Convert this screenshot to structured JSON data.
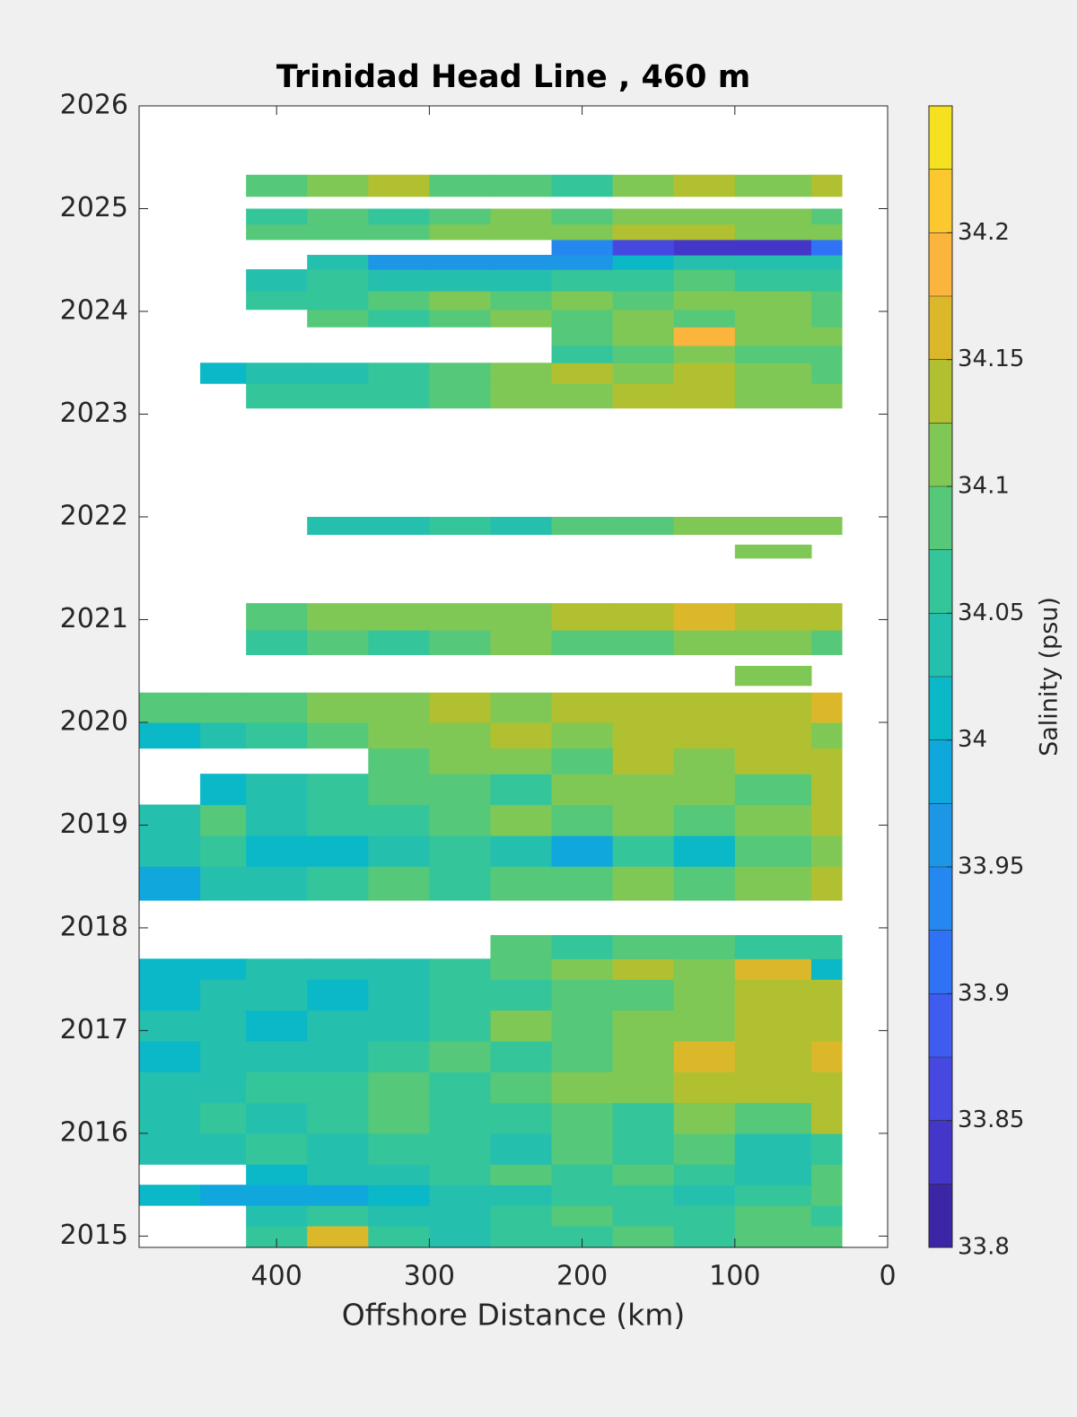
{
  "chart_data": {
    "type": "contour",
    "title": "Trinidad Head Line , 460 m",
    "xlabel": "Offshore Distance (km)",
    "colorbar_label": "Salinity (psu)",
    "xlim": [
      490,
      0
    ],
    "xticks": [
      400,
      300,
      200,
      100,
      0
    ],
    "ylim": [
      2014.89,
      2026
    ],
    "yticks": [
      2015,
      2016,
      2017,
      2018,
      2019,
      2020,
      2021,
      2022,
      2023,
      2024,
      2025,
      2026
    ],
    "clim": [
      33.8,
      34.25
    ],
    "cticks": [
      33.8,
      33.85,
      33.9,
      33.95,
      34,
      34.05,
      34.1,
      34.15,
      34.2
    ],
    "colormap": [
      "#3d26a6",
      "#4436c8",
      "#4748e0",
      "#3f5cf0",
      "#3072f5",
      "#2588f0",
      "#1e96e6",
      "#10a8dc",
      "#0ab8c8",
      "#25bfad",
      "#35c59a",
      "#55c87a",
      "#80c855",
      "#b0c030",
      "#dbb82a",
      "#fbb43c",
      "#fcc830",
      "#f6e120"
    ],
    "xbins": [
      490,
      450,
      420,
      380,
      340,
      300,
      260,
      220,
      180,
      140,
      100,
      50,
      30
    ],
    "ybins": [
      2014.89,
      2015.1,
      2015.3,
      2015.5,
      2015.7,
      2016.0,
      2016.3,
      2016.6,
      2016.9,
      2017.2,
      2017.5,
      2017.7,
      2017.93,
      2018.27,
      2018.6,
      2018.9,
      2019.2,
      2019.5,
      2019.75,
      2020.0,
      2020.29,
      2020.36,
      2020.55,
      2020.66,
      2020.9,
      2021.16,
      2021.6,
      2021.73,
      2021.83,
      2022.0,
      2023.06,
      2023.3,
      2023.5,
      2023.67,
      2023.85,
      2024.02,
      2024.2,
      2024.41,
      2024.55,
      2024.7,
      2024.85,
      2025.0,
      2025.12,
      2025.33,
      2026
    ],
    "z": [
      [
        null,
        null,
        34.07,
        34.16,
        34.06,
        34.05,
        34.06,
        34.07,
        34.08,
        34.07,
        34.09,
        34.08
      ],
      [
        null,
        null,
        34.05,
        34.06,
        34.04,
        34.05,
        34.06,
        34.08,
        34.07,
        34.06,
        34.08,
        34.07
      ],
      [
        34.01,
        33.99,
        33.98,
        33.99,
        34.02,
        34.04,
        34.05,
        34.07,
        34.06,
        34.04,
        34.07,
        34.08
      ],
      [
        null,
        null,
        34.0,
        34.03,
        34.05,
        34.07,
        34.08,
        34.06,
        34.09,
        34.07,
        34.04,
        34.09
      ],
      [
        34.03,
        34.05,
        34.06,
        34.05,
        34.07,
        34.06,
        34.03,
        34.08,
        34.06,
        34.08,
        34.05,
        34.07
      ],
      [
        34.04,
        34.06,
        34.05,
        34.07,
        34.08,
        34.06,
        34.07,
        34.09,
        34.07,
        34.1,
        34.08,
        34.14
      ],
      [
        34.03,
        34.05,
        34.07,
        34.06,
        34.09,
        34.07,
        34.08,
        34.1,
        34.12,
        34.13,
        34.14,
        34.15
      ],
      [
        34.02,
        34.04,
        34.03,
        34.05,
        34.06,
        34.08,
        34.07,
        34.09,
        34.12,
        34.16,
        34.15,
        34.16
      ],
      [
        34.04,
        34.03,
        34.02,
        34.04,
        34.05,
        34.06,
        34.12,
        34.08,
        34.1,
        34.12,
        34.13,
        34.14
      ],
      [
        34.02,
        34.03,
        34.04,
        34.02,
        34.05,
        34.07,
        34.06,
        34.08,
        34.09,
        34.11,
        34.14,
        34.13
      ],
      [
        34.01,
        34.02,
        34.03,
        34.04,
        34.03,
        34.06,
        34.08,
        34.1,
        34.14,
        34.12,
        34.16,
        34.02
      ],
      [
        null,
        null,
        null,
        null,
        null,
        null,
        34.08,
        34.07,
        34.09,
        34.08,
        34.06,
        34.07
      ],
      [
        null,
        null,
        null,
        null,
        null,
        null,
        null,
        null,
        null,
        null,
        null,
        null
      ],
      [
        33.99,
        34.03,
        34.05,
        34.06,
        34.08,
        34.07,
        34.09,
        34.08,
        34.1,
        34.09,
        34.12,
        34.13
      ],
      [
        34.04,
        34.06,
        34.02,
        34.0,
        34.03,
        34.07,
        34.05,
        33.99,
        34.06,
        34.0,
        34.08,
        34.1
      ],
      [
        34.05,
        34.08,
        34.04,
        34.06,
        34.07,
        34.09,
        34.1,
        34.08,
        34.12,
        34.09,
        34.11,
        34.13
      ],
      [
        null,
        34.0,
        34.04,
        34.06,
        34.08,
        34.09,
        34.07,
        34.11,
        34.1,
        34.12,
        34.08,
        34.13
      ],
      [
        null,
        null,
        null,
        null,
        34.08,
        34.1,
        34.12,
        34.09,
        34.13,
        34.11,
        34.13,
        34.14
      ],
      [
        34.01,
        34.04,
        34.06,
        34.08,
        34.1,
        34.12,
        34.13,
        34.1,
        34.15,
        34.14,
        34.13,
        34.12
      ],
      [
        34.08,
        34.08,
        34.09,
        34.1,
        34.12,
        34.13,
        34.12,
        34.14,
        34.13,
        34.15,
        34.14,
        34.16
      ],
      [
        null,
        null,
        null,
        null,
        null,
        null,
        null,
        null,
        null,
        null,
        null,
        null
      ],
      [
        null,
        null,
        null,
        null,
        null,
        null,
        null,
        null,
        null,
        null,
        34.1,
        null
      ],
      [
        null,
        null,
        null,
        null,
        null,
        null,
        null,
        null,
        null,
        null,
        null,
        null
      ],
      [
        null,
        null,
        34.07,
        34.08,
        34.06,
        34.09,
        34.1,
        34.08,
        34.09,
        34.1,
        34.11,
        34.09
      ],
      [
        null,
        null,
        34.09,
        34.1,
        34.11,
        34.12,
        34.11,
        34.13,
        34.14,
        34.16,
        34.15,
        34.14
      ],
      [
        null,
        null,
        null,
        null,
        null,
        null,
        null,
        null,
        null,
        null,
        null,
        null
      ],
      [
        null,
        null,
        null,
        null,
        null,
        null,
        null,
        null,
        null,
        null,
        34.1,
        null
      ],
      [
        null,
        null,
        null,
        null,
        null,
        null,
        null,
        null,
        null,
        null,
        null,
        null
      ],
      [
        null,
        null,
        null,
        34.05,
        34.04,
        34.06,
        34.03,
        34.08,
        34.09,
        34.1,
        34.11,
        34.1
      ],
      [
        null,
        null,
        null,
        null,
        null,
        null,
        null,
        null,
        null,
        null,
        null,
        null
      ],
      [
        null,
        null,
        34.06,
        34.07,
        34.06,
        34.09,
        34.1,
        34.12,
        34.14,
        34.13,
        34.12,
        34.1
      ],
      [
        null,
        34.02,
        34.04,
        34.05,
        34.07,
        34.08,
        34.1,
        34.13,
        34.11,
        34.14,
        34.12,
        34.09
      ],
      [
        null,
        null,
        null,
        null,
        null,
        null,
        null,
        34.06,
        34.08,
        34.1,
        34.09,
        34.08
      ],
      [
        null,
        null,
        null,
        null,
        null,
        null,
        null,
        34.09,
        34.1,
        34.19,
        34.11,
        34.1
      ],
      [
        null,
        null,
        null,
        34.08,
        34.07,
        34.09,
        34.1,
        34.08,
        34.11,
        34.09,
        34.1,
        34.08
      ],
      [
        null,
        null,
        34.06,
        34.07,
        34.09,
        34.1,
        34.08,
        34.1,
        34.09,
        34.11,
        34.12,
        34.09
      ],
      [
        null,
        null,
        34.05,
        34.06,
        34.04,
        34.03,
        34.05,
        34.07,
        34.06,
        34.08,
        34.07,
        34.06
      ],
      [
        null,
        null,
        null,
        34.03,
        33.97,
        33.95,
        33.96,
        33.97,
        34.02,
        34.03,
        34.04,
        34.04
      ],
      [
        null,
        null,
        null,
        null,
        null,
        null,
        null,
        33.93,
        33.86,
        33.84,
        33.84,
        33.9
      ],
      [
        null,
        null,
        34.08,
        34.09,
        34.08,
        34.1,
        34.12,
        34.11,
        34.13,
        34.15,
        34.12,
        34.1
      ],
      [
        null,
        null,
        34.06,
        34.08,
        34.07,
        34.09,
        34.1,
        34.09,
        34.1,
        34.12,
        34.1,
        34.09
      ],
      [
        null,
        null,
        null,
        null,
        null,
        null,
        null,
        null,
        null,
        null,
        null,
        null
      ],
      [
        null,
        null,
        34.08,
        34.1,
        34.13,
        34.09,
        34.08,
        34.07,
        34.1,
        34.13,
        34.12,
        34.14
      ],
      [
        null,
        null,
        null,
        null,
        null,
        null,
        null,
        null,
        null,
        null,
        null,
        null
      ]
    ]
  }
}
